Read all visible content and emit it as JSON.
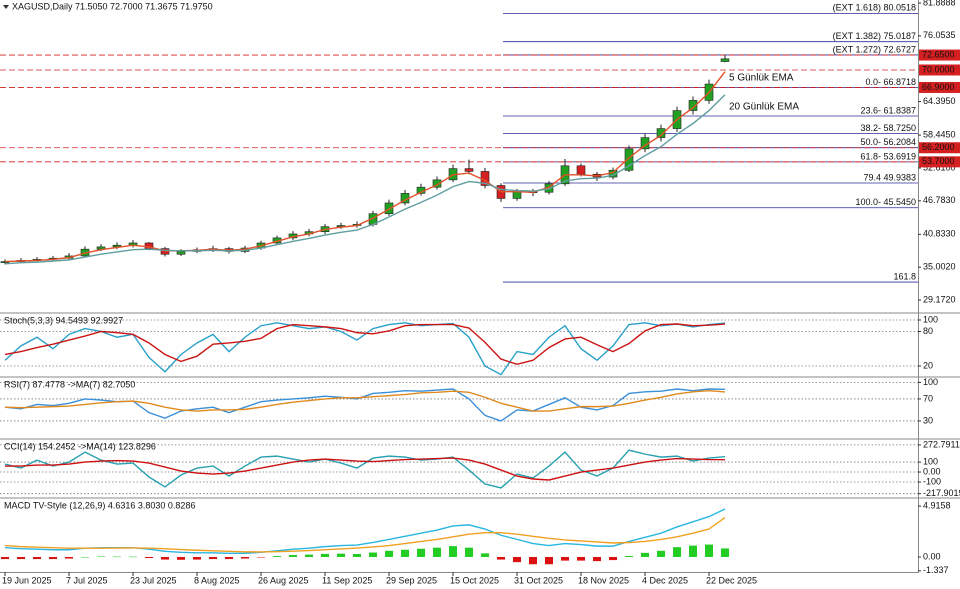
{
  "chart_data": [
    {
      "type": "candlestick",
      "title": "XAGUSD,Daily  71.5050 72.7000 71.3675 71.9750",
      "categories": [
        "19 Jun 2025",
        null,
        null,
        null,
        "7 Jul 2025",
        null,
        null,
        null,
        "23 Jul 2025",
        null,
        null,
        null,
        "8 Aug 2025",
        null,
        null,
        null,
        "26 Aug 2025",
        null,
        null,
        null,
        "11 Sep 2025",
        null,
        null,
        null,
        "29 Sep 2025",
        null,
        null,
        null,
        "15 Oct 2025",
        null,
        null,
        null,
        "31 Oct 2025",
        null,
        null,
        null,
        "18 Nov 2025",
        null,
        null,
        null,
        "4 Dec 2025",
        null,
        null,
        null,
        "22 Dec 2025",
        null
      ],
      "open": [
        35.8,
        36.0,
        36.2,
        36.4,
        36.6,
        37.0,
        38.2,
        38.6,
        38.9,
        39.3,
        38.3,
        37.3,
        37.8,
        38.1,
        38.3,
        37.8,
        38.4,
        39.3,
        40.2,
        40.9,
        41.3,
        42.2,
        42.4,
        42.6,
        44.5,
        46.4,
        48.1,
        49.2,
        50.5,
        52.5,
        52.0,
        49.5,
        47.2,
        48.4,
        48.3,
        49.8,
        53.0,
        51.5,
        51.0,
        52.2,
        56.0,
        58.0,
        59.6,
        62.8,
        64.6,
        71.505
      ],
      "high": [
        36.4,
        36.6,
        36.8,
        37.0,
        37.5,
        38.7,
        39.1,
        39.4,
        39.8,
        39.5,
        38.6,
        38.2,
        38.5,
        38.8,
        38.6,
        38.8,
        39.7,
        40.6,
        41.4,
        41.8,
        42.7,
        42.9,
        43.1,
        45.0,
        47.0,
        48.7,
        49.8,
        51.1,
        53.2,
        54.1,
        52.6,
        49.9,
        48.9,
        48.9,
        50.3,
        54.2,
        53.4,
        51.9,
        52.7,
        56.6,
        58.7,
        60.3,
        63.5,
        65.3,
        68.3,
        72.7
      ],
      "low": [
        35.5,
        35.7,
        35.9,
        36.1,
        36.3,
        36.7,
        37.9,
        38.2,
        38.5,
        38.0,
        36.9,
        37.0,
        37.5,
        37.7,
        37.4,
        37.5,
        38.1,
        39.0,
        39.8,
        40.5,
        40.9,
        41.8,
        42.0,
        42.2,
        44.1,
        46.0,
        47.7,
        48.8,
        50.1,
        51.5,
        49.0,
        46.6,
        46.8,
        47.6,
        47.9,
        49.4,
        51.1,
        50.3,
        50.6,
        51.9,
        55.4,
        57.3,
        59.0,
        62.1,
        64.0,
        71.3675
      ],
      "close": [
        36.0,
        36.2,
        36.4,
        36.6,
        37.0,
        38.2,
        38.6,
        38.9,
        39.3,
        38.3,
        37.3,
        37.8,
        38.1,
        38.3,
        37.8,
        38.4,
        39.3,
        40.2,
        40.9,
        41.3,
        42.2,
        42.4,
        42.6,
        44.5,
        46.4,
        48.1,
        49.2,
        50.5,
        52.5,
        52.0,
        49.5,
        47.2,
        48.4,
        48.3,
        49.8,
        53.0,
        51.5,
        51.0,
        52.2,
        56.0,
        58.0,
        59.6,
        62.8,
        64.6,
        67.5,
        71.975
      ],
      "up_color": "#22a022",
      "down_color": "#d42020",
      "series": [
        {
          "name": "5 Günlük EMA",
          "color": "#e2502a",
          "values": [
            36.0,
            36.1,
            36.2,
            36.4,
            36.7,
            37.5,
            38.1,
            38.5,
            38.9,
            38.6,
            37.9,
            37.9,
            38.0,
            38.2,
            38.0,
            38.2,
            38.8,
            39.6,
            40.4,
            40.9,
            41.7,
            42.1,
            42.4,
            43.7,
            45.3,
            46.9,
            48.3,
            49.6,
            51.4,
            51.7,
            50.4,
            48.4,
            48.4,
            48.3,
            49.2,
            51.4,
            51.4,
            51.2,
            51.8,
            54.4,
            56.6,
            58.4,
            61.2,
            63.3,
            66.0,
            69.7
          ]
        },
        {
          "name": "20 Günlük EMA",
          "color": "#5f9ea0",
          "values": [
            35.6,
            35.8,
            35.9,
            36.1,
            36.3,
            36.8,
            37.3,
            37.7,
            38.1,
            38.2,
            38.0,
            37.9,
            37.9,
            38.0,
            37.9,
            38.0,
            38.4,
            39.0,
            39.6,
            40.1,
            40.7,
            41.2,
            41.6,
            42.6,
            43.9,
            45.3,
            46.5,
            47.8,
            49.3,
            50.2,
            49.9,
            48.8,
            48.6,
            48.5,
            48.9,
            50.3,
            50.7,
            50.8,
            51.3,
            53.0,
            54.8,
            56.4,
            58.6,
            60.5,
            62.8,
            65.6
          ]
        }
      ],
      "ylim": [
        27.05,
        82.42
      ],
      "yticks": [
        81.8888,
        76.0535,
        {
          "value": 64.395,
          "label": "64.3950"
        },
        {
          "value": 58.445,
          "label": "58.4450"
        },
        {
          "value": 52.61,
          "label": "52.6100"
        },
        {
          "value": 46.783,
          "label": "46.7830"
        },
        {
          "value": 40.833,
          "label": "40.8330"
        },
        {
          "value": 35.002,
          "label": "35.0020"
        },
        {
          "value": 29.172,
          "label": "29.1720"
        }
      ],
      "grid": false,
      "level_color": "#d42020",
      "levels": [
        {
          "value": 72.65,
          "label": "72.6500"
        },
        {
          "value": 70,
          "label": "70.0000"
        },
        {
          "value": 66.9,
          "label": "66.9000"
        },
        {
          "value": 56.2,
          "label": "56.2000"
        },
        {
          "value": 53.7,
          "label": "53.7000"
        }
      ],
      "fib_color": "#2b2b9a",
      "fib_levels": [
        {
          "value": 80.0518,
          "label": "(EXT 1.618)  80.0518"
        },
        {
          "value": 75.0187,
          "label": "(EXT 1.382)  75.0187"
        },
        {
          "value": 72.6727,
          "label": "(EXT 1.272)  72.6727"
        },
        {
          "value": 66.8718,
          "label": "0.0- 66.8718"
        },
        {
          "value": 61.8387,
          "label": "23.6- 61.8387"
        },
        {
          "value": 58.725,
          "label": "38.2- 58.7250"
        },
        {
          "value": 56.2084,
          "label": "50.0- 56.2084"
        },
        {
          "value": 53.6919,
          "label": "61.8- 53.6919"
        },
        {
          "value": 49.9383,
          "label": "79.4  49.9383"
        },
        {
          "value": 45.545,
          "label": "100.0- 45.5450"
        },
        {
          "value": 32.36,
          "label": "161.8"
        }
      ]
    },
    {
      "type": "line",
      "title": "Stoch(5,3,3) 94.5493 92.9927",
      "ylim": [
        2.6,
        110.4
      ],
      "yticks": [
        100,
        80,
        20
      ],
      "grid": true,
      "series": [
        {
          "color": "#2aa0c8",
          "values": [
            30,
            55,
            70,
            50,
            75,
            85,
            80,
            70,
            75,
            35,
            10,
            40,
            60,
            75,
            45,
            70,
            90,
            95,
            90,
            85,
            88,
            80,
            65,
            85,
            92,
            95,
            90,
            92,
            94,
            70,
            20,
            5,
            45,
            40,
            70,
            90,
            50,
            30,
            55,
            92,
            95,
            90,
            93,
            88,
            92,
            94.5493
          ]
        },
        {
          "color": "#cc1414",
          "values": [
            40,
            45,
            52,
            58,
            65,
            72,
            80,
            78,
            75,
            60,
            40,
            28,
            37,
            58,
            60,
            63,
            68,
            85,
            92,
            90,
            88,
            85,
            78,
            76,
            81,
            90,
            92,
            92,
            92,
            86,
            61,
            32,
            23,
            30,
            52,
            67,
            70,
            57,
            45,
            59,
            81,
            92,
            93,
            90,
            91,
            92.9927
          ]
        }
      ]
    },
    {
      "type": "line",
      "title": "RSI(7) 87.4778  ->MA(7) 82.7050",
      "ylim": [
        -1,
        108
      ],
      "yticks": [
        100,
        70,
        30
      ],
      "grid": true,
      "series": [
        {
          "color": "#3a8fd9",
          "values": [
            55,
            52,
            60,
            58,
            62,
            70,
            68,
            65,
            66,
            45,
            35,
            48,
            52,
            55,
            45,
            55,
            65,
            68,
            70,
            72,
            75,
            73,
            70,
            80,
            82,
            85,
            84,
            86,
            88,
            70,
            40,
            30,
            50,
            48,
            60,
            72,
            55,
            50,
            58,
            80,
            83,
            84,
            88,
            85,
            88,
            87.4778
          ]
        },
        {
          "color": "#e08a1e",
          "values": [
            55,
            54,
            55,
            56,
            57,
            60,
            63,
            65,
            66,
            62,
            55,
            50,
            48,
            50,
            50,
            51,
            55,
            60,
            64,
            67,
            70,
            72,
            72,
            74,
            76,
            78,
            81,
            82,
            84,
            82,
            73,
            62,
            55,
            48,
            48,
            52,
            56,
            56,
            57,
            62,
            68,
            73,
            79,
            83,
            85,
            82.705
          ]
        }
      ]
    },
    {
      "type": "line",
      "title": "CCI(14) 154.2452  ->MA(14) 123.8296",
      "ylim": [
        -251,
        322
      ],
      "yticks": [
        272.7911,
        100,
        {
          "value": 0,
          "label": "0.00"
        },
        -100,
        -217.9019
      ],
      "grid": true,
      "series": [
        {
          "color": "#28a0b0",
          "values": [
            80,
            40,
            120,
            60,
            100,
            200,
            120,
            80,
            90,
            -50,
            -150,
            -30,
            40,
            60,
            -40,
            60,
            150,
            160,
            130,
            100,
            130,
            90,
            40,
            140,
            160,
            150,
            120,
            130,
            150,
            20,
            -120,
            -160,
            -20,
            -60,
            60,
            200,
            20,
            -40,
            40,
            220,
            180,
            150,
            160,
            110,
            140,
            154.2452
          ]
        },
        {
          "color": "#cc1010",
          "values": [
            60,
            60,
            70,
            70,
            80,
            100,
            110,
            115,
            110,
            90,
            50,
            10,
            -10,
            -20,
            -10,
            10,
            40,
            70,
            100,
            120,
            130,
            120,
            110,
            105,
            115,
            125,
            130,
            135,
            140,
            120,
            80,
            20,
            -40,
            -70,
            -80,
            -40,
            0,
            20,
            40,
            70,
            100,
            120,
            135,
            130,
            125,
            123.8296
          ]
        }
      ]
    },
    {
      "type": "line",
      "title": "MACD TV-Style (12,26,9) 4.6316 3.8030 0.8286",
      "ylim": [
        -1.45,
        5.6
      ],
      "yticks": [
        4.9158,
        {
          "value": 0,
          "label": "0.00"
        },
        -1.337
      ],
      "grid": false,
      "series": [
        {
          "style": "histogram",
          "up_color": "#22cc22",
          "down_color": "#dd1010",
          "values": [
            -0.2,
            -0.2,
            -0.2,
            -0.2,
            -0.15,
            0,
            0.05,
            0.04,
            0.03,
            -0.1,
            -0.25,
            -0.27,
            -0.25,
            -0.2,
            -0.2,
            -0.15,
            -0.04,
            0.09,
            0.19,
            0.23,
            0.3,
            0.32,
            0.29,
            0.43,
            0.6,
            0.7,
            0.8,
            0.9,
            1.05,
            0.9,
            0.35,
            -0.25,
            -0.5,
            -0.7,
            -0.7,
            -0.35,
            -0.35,
            -0.4,
            -0.3,
            0.1,
            0.4,
            0.6,
            0.95,
            1.1,
            1.2,
            0.8286
          ]
        },
        {
          "color": "#29b6e0",
          "values": [
            0.9,
            0.8,
            0.75,
            0.7,
            0.7,
            0.85,
            0.9,
            0.9,
            0.9,
            0.75,
            0.55,
            0.45,
            0.4,
            0.4,
            0.35,
            0.35,
            0.45,
            0.6,
            0.75,
            0.85,
            1.0,
            1.1,
            1.15,
            1.4,
            1.7,
            2.0,
            2.3,
            2.6,
            3.0,
            3.1,
            2.7,
            2.1,
            1.7,
            1.3,
            1.1,
            1.3,
            1.2,
            1.05,
            1.05,
            1.5,
            1.9,
            2.3,
            2.9,
            3.4,
            3.9,
            4.6316
          ]
        },
        {
          "color": "#f0a020",
          "values": [
            1.1,
            1.0,
            0.95,
            0.9,
            0.85,
            0.85,
            0.85,
            0.86,
            0.87,
            0.85,
            0.8,
            0.72,
            0.65,
            0.6,
            0.55,
            0.5,
            0.49,
            0.51,
            0.56,
            0.62,
            0.7,
            0.78,
            0.86,
            0.97,
            1.1,
            1.3,
            1.5,
            1.7,
            1.95,
            2.2,
            2.35,
            2.35,
            2.2,
            2.0,
            1.8,
            1.65,
            1.55,
            1.45,
            1.35,
            1.4,
            1.5,
            1.7,
            1.95,
            2.3,
            2.7,
            3.803
          ]
        }
      ]
    }
  ]
}
